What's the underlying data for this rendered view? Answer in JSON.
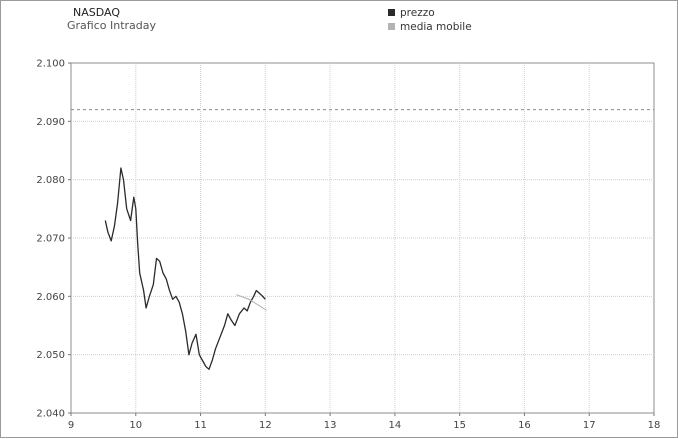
{
  "header": {
    "title": "NASDAQ",
    "subtitle": "Grafico Intraday"
  },
  "chart_data": {
    "type": "line",
    "title": "NASDAQ",
    "subtitle": "Grafico Intraday",
    "xlabel": "",
    "ylabel": "",
    "xlim": [
      9,
      18
    ],
    "ylim": [
      2040,
      2100
    ],
    "x_ticks": [
      9,
      10,
      11,
      12,
      13,
      14,
      15,
      16,
      17,
      18
    ],
    "y_ticks": [
      2040,
      2050,
      2060,
      2070,
      2080,
      2090,
      2100
    ],
    "y_tick_labels": [
      "2.040",
      "2.050",
      "2.060",
      "2.070",
      "2.080",
      "2.090",
      "2.100"
    ],
    "grid": true,
    "legend_position": "top-center",
    "reference_line": {
      "y": 2092,
      "style": "dashed",
      "color": "#8a8a8a"
    },
    "series": [
      {
        "name": "prezzo",
        "color": "#2a2a2a",
        "points": [
          [
            9.53,
            2073
          ],
          [
            9.57,
            2071
          ],
          [
            9.62,
            2069.5
          ],
          [
            9.67,
            2072
          ],
          [
            9.72,
            2076
          ],
          [
            9.77,
            2082
          ],
          [
            9.81,
            2080
          ],
          [
            9.86,
            2075
          ],
          [
            9.92,
            2073
          ],
          [
            9.97,
            2077
          ],
          [
            10.0,
            2075
          ],
          [
            10.03,
            2069
          ],
          [
            10.06,
            2064
          ],
          [
            10.12,
            2061
          ],
          [
            10.16,
            2058
          ],
          [
            10.21,
            2060
          ],
          [
            10.27,
            2062
          ],
          [
            10.32,
            2066.5
          ],
          [
            10.37,
            2066
          ],
          [
            10.42,
            2064
          ],
          [
            10.47,
            2063
          ],
          [
            10.52,
            2061
          ],
          [
            10.57,
            2059.5
          ],
          [
            10.62,
            2060
          ],
          [
            10.67,
            2059
          ],
          [
            10.72,
            2057
          ],
          [
            10.77,
            2054
          ],
          [
            10.82,
            2050
          ],
          [
            10.87,
            2052
          ],
          [
            10.93,
            2053.5
          ],
          [
            10.98,
            2050
          ],
          [
            11.03,
            2049
          ],
          [
            11.08,
            2048
          ],
          [
            11.13,
            2047.5
          ],
          [
            11.18,
            2049
          ],
          [
            11.23,
            2051
          ],
          [
            11.3,
            2053
          ],
          [
            11.37,
            2055
          ],
          [
            11.42,
            2057
          ],
          [
            11.47,
            2056
          ],
          [
            11.53,
            2055
          ],
          [
            11.6,
            2057
          ],
          [
            11.67,
            2058
          ],
          [
            11.72,
            2057.5
          ],
          [
            11.77,
            2059
          ],
          [
            11.82,
            2060
          ],
          [
            11.86,
            2061
          ],
          [
            11.91,
            2060.5
          ],
          [
            11.96,
            2060
          ],
          [
            12.0,
            2059.5
          ]
        ]
      },
      {
        "name": "media mobile",
        "color": "#b3b3b3",
        "points": [
          [
            11.55,
            2060.3
          ],
          [
            11.75,
            2059.5
          ],
          [
            12.02,
            2057.6
          ]
        ]
      }
    ]
  }
}
